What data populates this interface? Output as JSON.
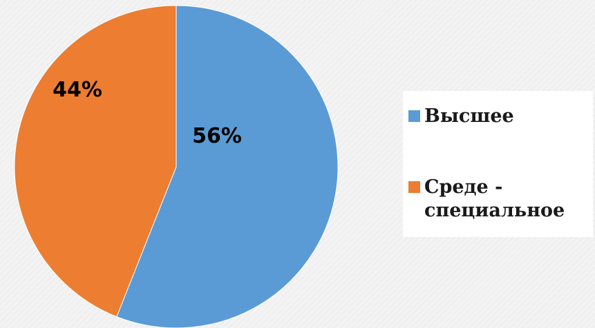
{
  "chart_data": {
    "type": "pie",
    "categories": [
      "Высшее",
      "Среде - специальное"
    ],
    "values": [
      56,
      44
    ],
    "data_labels": [
      "56%",
      "44%"
    ],
    "slice_colors": [
      "#5b9bd5",
      "#ed7d31"
    ],
    "legend_placement": "right"
  },
  "legend": {
    "items": [
      {
        "label_lines": [
          "Высшее"
        ],
        "color": "#5b9bd5"
      },
      {
        "label_lines": [
          "Среде -",
          "специальное"
        ],
        "color": "#ed7d31"
      }
    ]
  }
}
